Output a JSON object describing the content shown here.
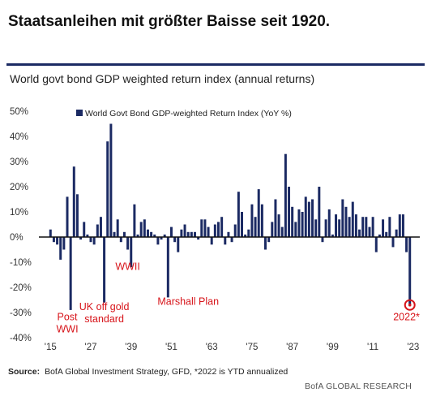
{
  "headline": "Staatsanleihen mit größter Baisse seit 1920.",
  "chart_title": "World govt bond GDP weighted return index (annual returns)",
  "source_label": "Source:",
  "source_text": "BofA Global Investment Strategy, GFD, *2022  is YTD annualized",
  "credit": "BofA GLOBAL RESEARCH",
  "colors": {
    "bar": "#1b2a63",
    "annotation": "#d7141a",
    "rule": "#1b2a63"
  },
  "chart_data": {
    "type": "bar",
    "series": [
      {
        "name": "World Govt Bond GDP-weighted Return Index (YoY %)",
        "x": [
          1915,
          1916,
          1917,
          1918,
          1919,
          1920,
          1921,
          1922,
          1923,
          1924,
          1925,
          1926,
          1927,
          1928,
          1929,
          1930,
          1931,
          1932,
          1933,
          1934,
          1935,
          1936,
          1937,
          1938,
          1939,
          1940,
          1941,
          1942,
          1943,
          1944,
          1945,
          1946,
          1947,
          1948,
          1949,
          1950,
          1951,
          1952,
          1953,
          1954,
          1955,
          1956,
          1957,
          1958,
          1959,
          1960,
          1961,
          1962,
          1963,
          1964,
          1965,
          1966,
          1967,
          1968,
          1969,
          1970,
          1971,
          1972,
          1973,
          1974,
          1975,
          1976,
          1977,
          1978,
          1979,
          1980,
          1981,
          1982,
          1983,
          1984,
          1985,
          1986,
          1987,
          1988,
          1989,
          1990,
          1991,
          1992,
          1993,
          1994,
          1995,
          1996,
          1997,
          1998,
          1999,
          2000,
          2001,
          2002,
          2003,
          2004,
          2005,
          2006,
          2007,
          2008,
          2009,
          2010,
          2011,
          2012,
          2013,
          2014,
          2015,
          2016,
          2017,
          2018,
          2019,
          2020,
          2021,
          2022
        ],
        "values": [
          3,
          -2,
          -3,
          -9,
          -5,
          16,
          -29,
          28,
          17,
          -1,
          6,
          1,
          -2,
          -3,
          5,
          8,
          -26,
          38,
          45,
          2,
          7,
          -2,
          2,
          -5,
          -12,
          13,
          1,
          6,
          7,
          3,
          2,
          1,
          -3,
          -1,
          1,
          -24,
          4,
          -2,
          -6,
          3,
          5,
          2,
          2,
          2,
          -1,
          7,
          7,
          4,
          -3,
          5,
          6,
          8,
          -3,
          2,
          -2,
          5,
          18,
          10,
          1,
          3,
          13,
          8,
          19,
          13,
          -5,
          -2,
          6,
          15,
          9,
          4,
          33,
          20,
          12,
          6,
          11,
          10,
          16,
          14,
          15,
          7,
          20,
          -2,
          7,
          11,
          1,
          9,
          7,
          15,
          12,
          8,
          14,
          9,
          3,
          8,
          8,
          4,
          8,
          -6,
          1,
          7,
          2,
          8,
          -4,
          3,
          9,
          9,
          -6,
          -27
        ]
      }
    ],
    "xlabel": "",
    "ylabel": "",
    "xlim": [
      1913,
      2024
    ],
    "ylim": [
      -40,
      50
    ],
    "yticks": [
      50,
      40,
      30,
      20,
      10,
      0,
      -10,
      -20,
      -30,
      -40
    ],
    "ytick_labels": [
      "50%",
      "40%",
      "30%",
      "20%",
      "10%",
      "0%",
      "-10%",
      "-20%",
      "-30%",
      "-40%"
    ],
    "xticks": [
      1915,
      1927,
      1939,
      1951,
      1963,
      1975,
      1987,
      1999,
      2011,
      2023
    ],
    "xtick_labels": [
      "'15",
      "'27",
      "'39",
      "'51",
      "'63",
      "'75",
      "'87",
      "'99",
      "'11",
      "'23"
    ],
    "legend_position": "top-center",
    "grid": false,
    "annotations": [
      {
        "text_lines": [
          "Post",
          "WWI"
        ],
        "x": 1920,
        "y": -33
      },
      {
        "text_lines": [
          "UK off gold",
          "standard"
        ],
        "x": 1931,
        "y": -29
      },
      {
        "text_lines": [
          "WWII"
        ],
        "x": 1938,
        "y": -13
      },
      {
        "text_lines": [
          "Marshall Plan"
        ],
        "x": 1956,
        "y": -27
      },
      {
        "text_lines": [
          "2022*"
        ],
        "x": 2021,
        "y": -33
      }
    ],
    "highlight": {
      "x": 2022,
      "y": -27
    }
  }
}
